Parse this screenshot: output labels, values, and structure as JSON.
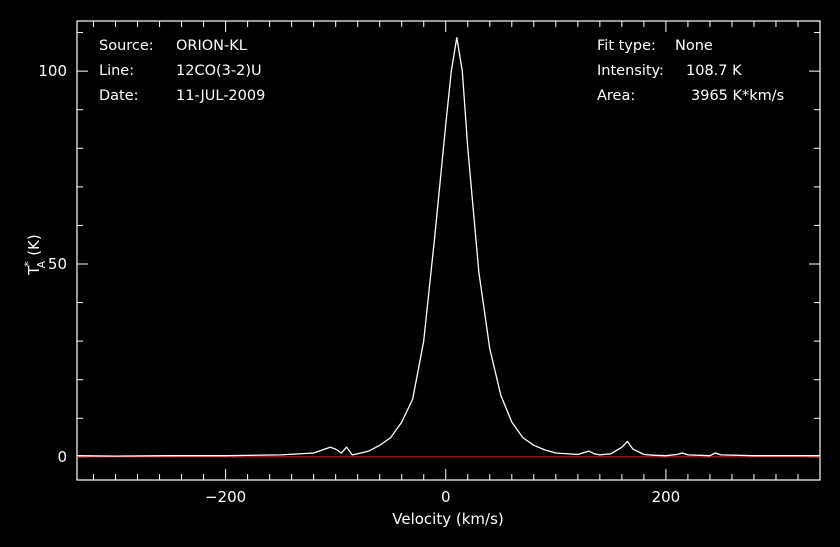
{
  "chart_data": {
    "type": "line",
    "xlabel": "Velocity (km/s)",
    "ylabel_main": "T",
    "ylabel_sup": "*",
    "ylabel_sub": "A",
    "ylabel_unit": "(K)",
    "xlim": [
      -335,
      340
    ],
    "ylim": [
      -6,
      113
    ],
    "xticks": [
      -200,
      0,
      200
    ],
    "yticks": [
      0,
      50,
      100
    ],
    "info_left": [
      {
        "key": "Source:",
        "value": "ORION-KL"
      },
      {
        "key": "Line:",
        "value": "12CO(3-2)U"
      },
      {
        "key": "Date:",
        "value": "11-JUL-2009"
      }
    ],
    "info_right": [
      {
        "key": "Fit type:",
        "value": "None"
      },
      {
        "key": "Intensity:",
        "value": "108.7 K"
      },
      {
        "key": "Area:",
        "value": "3965 K*km/s"
      }
    ],
    "baseline_value": 0,
    "series": [
      {
        "x": [
          -335,
          -300,
          -250,
          -200,
          -150,
          -120,
          -110,
          -105,
          -100,
          -95,
          -90,
          -85,
          -80,
          -70,
          -60,
          -50,
          -40,
          -30,
          -20,
          -10,
          0,
          5,
          10,
          15,
          20,
          30,
          40,
          50,
          60,
          70,
          80,
          90,
          100,
          120,
          130,
          135,
          140,
          150,
          160,
          165,
          170,
          180,
          190,
          200,
          210,
          215,
          220,
          240,
          245,
          250,
          280,
          300,
          340
        ],
        "y": [
          0.3,
          0.2,
          0.3,
          0.3,
          0.5,
          1.0,
          2.0,
          2.5,
          2.0,
          1.0,
          2.5,
          0.5,
          0.8,
          1.5,
          3.0,
          5.0,
          9.0,
          15.0,
          30.0,
          57.0,
          86.0,
          100.0,
          108.7,
          100.0,
          80.0,
          48.0,
          28.0,
          16.0,
          9.0,
          5.0,
          3.0,
          1.8,
          1.0,
          0.6,
          1.5,
          0.8,
          0.5,
          0.8,
          2.5,
          4.0,
          2.0,
          0.6,
          0.4,
          0.3,
          0.6,
          1.0,
          0.5,
          0.3,
          1.0,
          0.5,
          0.3,
          0.3,
          0.3
        ]
      }
    ],
    "colors": {
      "background": "#000000",
      "axes": "#ffffff",
      "spectrum": "#ffffff",
      "baseline": "#d42020"
    }
  }
}
